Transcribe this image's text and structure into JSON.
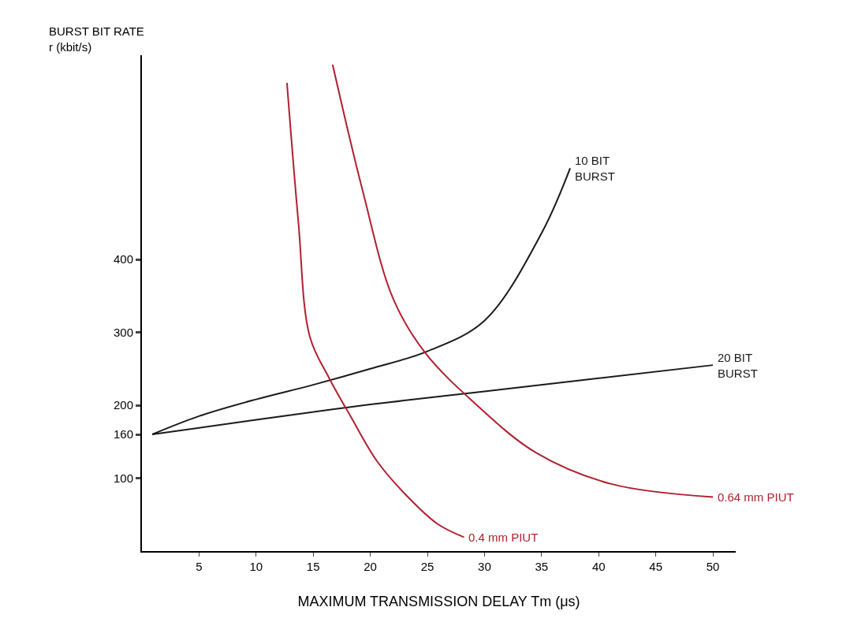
{
  "chart_data": {
    "type": "line",
    "xlabel": "MAXIMUM TRANSMISSION DELAY Tm (μs)",
    "ylabel": "BURST BIT RATE\nr (kbit/s)",
    "xlim": [
      0,
      52
    ],
    "xticks": [
      5,
      10,
      15,
      20,
      25,
      30,
      35,
      40,
      45,
      50
    ],
    "ylim": [
      0,
      680
    ],
    "yticks": [
      100,
      160,
      200,
      300,
      400
    ],
    "legend": false,
    "marker": "none",
    "line_style": "solid",
    "series": [
      {
        "name": "10 BIT\nBURST",
        "color": "#1a1a1a",
        "x": [
          0.9,
          5,
          10,
          15,
          20,
          25,
          30,
          35,
          37.5
        ],
        "values": [
          160,
          185,
          208,
          228,
          250,
          274,
          316,
          436,
          525
        ]
      },
      {
        "name": "20 BIT\nBURST",
        "color": "#1a1a1a",
        "x": [
          0.9,
          10,
          20,
          30,
          40,
          50
        ],
        "values": [
          160,
          180,
          201,
          219,
          237,
          255
        ]
      },
      {
        "name": "0.4 mm PIUT",
        "color": "#b0202f",
        "x": [
          12.7,
          13.7,
          14.7,
          16.4,
          18.3,
          20.6,
          23.3,
          25.9,
          28.2
        ],
        "values": [
          642,
          451,
          294,
          237,
          184,
          123,
          74,
          37,
          19
        ]
      },
      {
        "name": "0.64 mm PIUT",
        "color": "#b0202f",
        "x": [
          16.7,
          19.3,
          22,
          24.8,
          29.2,
          34.5,
          41.1,
          50
        ],
        "values": [
          667,
          496,
          346,
          272,
          202,
          135,
          92,
          74
        ]
      }
    ]
  }
}
